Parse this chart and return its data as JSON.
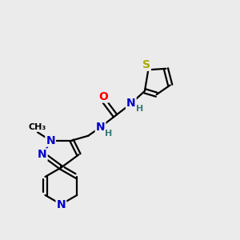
{
  "background_color": "#ebebeb",
  "atom_colors": {
    "C": "#000000",
    "N": "#0000cc",
    "O": "#ff0000",
    "S": "#aaaa00",
    "H": "#3a7a7a"
  },
  "figsize": [
    3.0,
    3.0
  ],
  "dpi": 100
}
